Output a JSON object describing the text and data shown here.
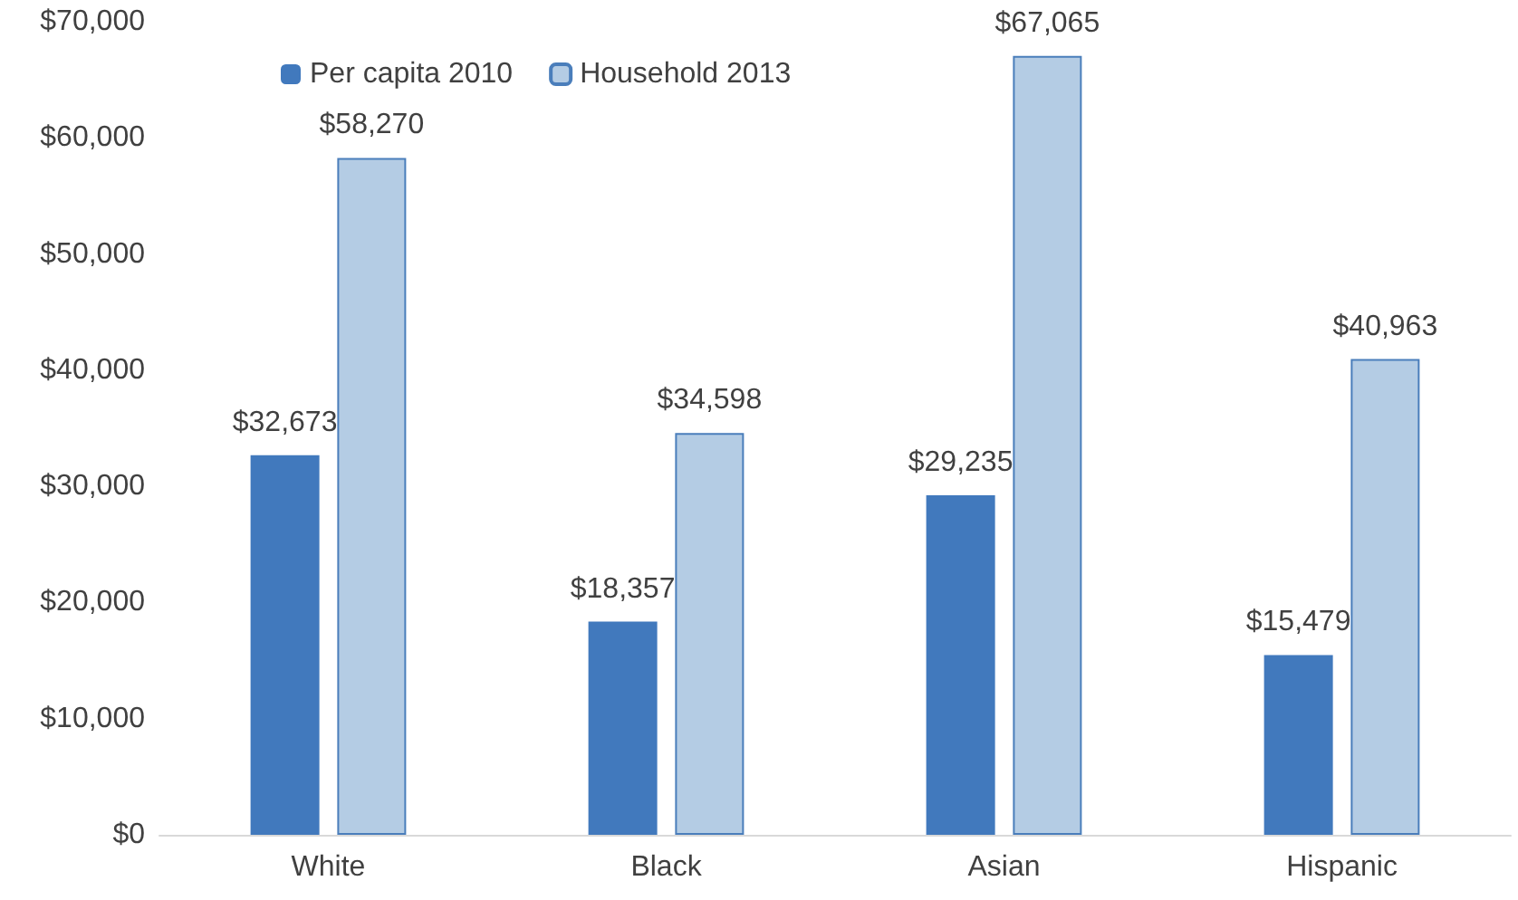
{
  "chart_data": {
    "type": "bar",
    "categories": [
      "White",
      "Black",
      "Asian",
      "Hispanic"
    ],
    "series": [
      {
        "name": "Per capita 2010",
        "color": "#4179bd",
        "values": [
          32673,
          18357,
          29235,
          15479
        ],
        "value_labels": [
          "$32,673",
          "$18,357",
          "$29,235",
          "$15,479"
        ]
      },
      {
        "name": "Household 2013",
        "color": "#b4cce4",
        "values": [
          58270,
          34598,
          67065,
          40963
        ],
        "value_labels": [
          "$58,270",
          "$34,598",
          "$67,065",
          "$40,963"
        ]
      }
    ],
    "ylim": [
      0,
      70000
    ],
    "yticks": [
      {
        "value": 0,
        "label": "$0"
      },
      {
        "value": 10000,
        "label": "$10,000"
      },
      {
        "value": 20000,
        "label": "$20,000"
      },
      {
        "value": 30000,
        "label": "$30,000"
      },
      {
        "value": 40000,
        "label": "$40,000"
      },
      {
        "value": 50000,
        "label": "$50,000"
      },
      {
        "value": 60000,
        "label": "$60,000"
      },
      {
        "value": 70000,
        "label": "$70,000"
      }
    ],
    "grid": false,
    "legend": "top left"
  }
}
